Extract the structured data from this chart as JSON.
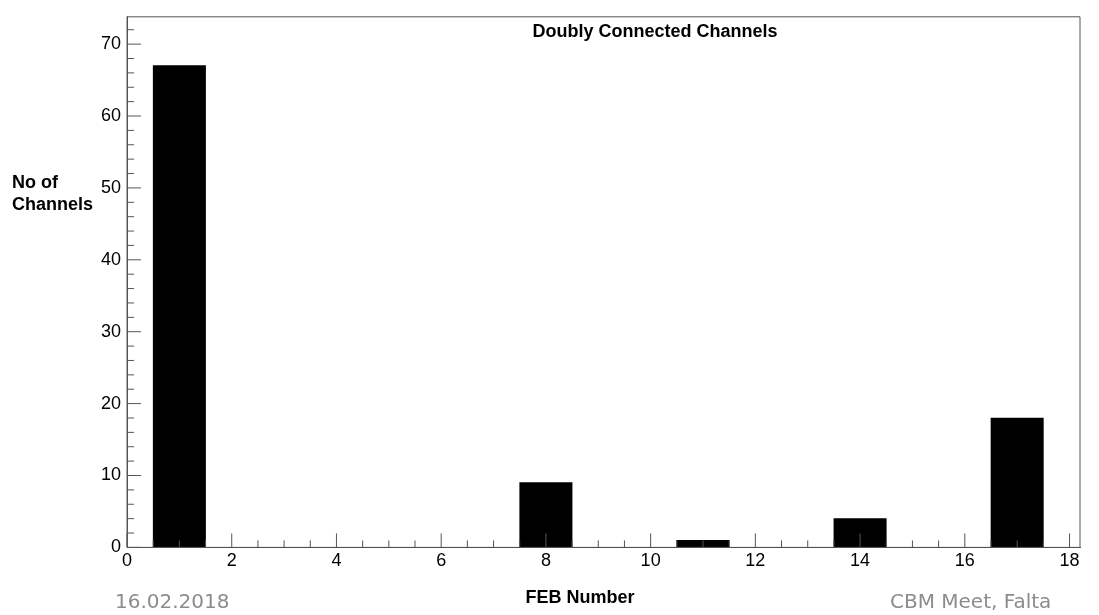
{
  "chart_data": {
    "type": "histogram",
    "title": "Doubly Connected Channels",
    "xlabel": "FEB Number",
    "ylabel": "No of Channels",
    "color": "#000000",
    "bins": [
      0.5,
      1.5,
      2.5,
      3.5,
      4.5,
      5.5,
      6.5,
      7.5,
      8.5,
      9.5,
      10.5,
      11.5,
      12.5,
      13.5,
      14.5,
      15.5,
      16.5,
      17.5
    ],
    "values": [
      67,
      0,
      0,
      0,
      0,
      0,
      0,
      9,
      0,
      0,
      1,
      0,
      0,
      4,
      0,
      0,
      18
    ],
    "xlim": [
      0,
      18.2
    ],
    "ylim": [
      0,
      73.8
    ],
    "xticks": [
      0,
      {
        "value": 0.5,
        "label": null
      },
      {
        "value": 1,
        "label": null
      },
      {
        "value": 1.5,
        "label": null
      },
      2,
      {
        "value": 2.5,
        "label": null
      },
      {
        "value": 3,
        "label": null
      },
      {
        "value": 3.5,
        "label": null
      },
      4,
      {
        "value": 4.5,
        "label": null
      },
      {
        "value": 5,
        "label": null
      },
      {
        "value": 5.5,
        "label": null
      },
      6,
      {
        "value": 6.5,
        "label": null
      },
      {
        "value": 7,
        "label": null
      },
      {
        "value": 7.5,
        "label": null
      },
      8,
      {
        "value": 8.5,
        "label": null
      },
      {
        "value": 9,
        "label": null
      },
      {
        "value": 9.5,
        "label": null
      },
      10,
      {
        "value": 10.5,
        "label": null
      },
      {
        "value": 11,
        "label": null
      },
      {
        "value": 11.5,
        "label": null
      },
      12,
      {
        "value": 12.5,
        "label": null
      },
      {
        "value": 13,
        "label": null
      },
      {
        "value": 13.5,
        "label": null
      },
      14,
      {
        "value": 14.5,
        "label": null
      },
      {
        "value": 15,
        "label": null
      },
      {
        "value": 15.5,
        "label": null
      },
      16,
      {
        "value": 16.5,
        "label": null
      },
      {
        "value": 17,
        "label": null
      },
      {
        "value": 17.5,
        "label": null
      },
      18
    ],
    "yticks": [
      0,
      {
        "value": 2,
        "label": null
      },
      {
        "value": 4,
        "label": null
      },
      {
        "value": 6,
        "label": null
      },
      {
        "value": 8,
        "label": null
      },
      10,
      {
        "value": 12,
        "label": null
      },
      {
        "value": 14,
        "label": null
      },
      {
        "value": 16,
        "label": null
      },
      {
        "value": 18,
        "label": null
      },
      20,
      {
        "value": 22,
        "label": null
      },
      {
        "value": 24,
        "label": null
      },
      {
        "value": 26,
        "label": null
      },
      {
        "value": 28,
        "label": null
      },
      30,
      {
        "value": 32,
        "label": null
      },
      {
        "value": 34,
        "label": null
      },
      {
        "value": 36,
        "label": null
      },
      {
        "value": 38,
        "label": null
      },
      40,
      {
        "value": 42,
        "label": null
      },
      {
        "value": 44,
        "label": null
      },
      {
        "value": 46,
        "label": null
      },
      {
        "value": 48,
        "label": null
      },
      50,
      {
        "value": 52,
        "label": null
      },
      {
        "value": 54,
        "label": null
      },
      {
        "value": 56,
        "label": null
      },
      {
        "value": 58,
        "label": null
      },
      60,
      {
        "value": 62,
        "label": null
      },
      {
        "value": 64,
        "label": null
      },
      {
        "value": 66,
        "label": null
      },
      {
        "value": 68,
        "label": null
      },
      70,
      {
        "value": 72,
        "label": null
      }
    ],
    "grid": false,
    "legend": false,
    "annotations": [
      "16.02.2018",
      "CBM Meet, Falta"
    ]
  }
}
